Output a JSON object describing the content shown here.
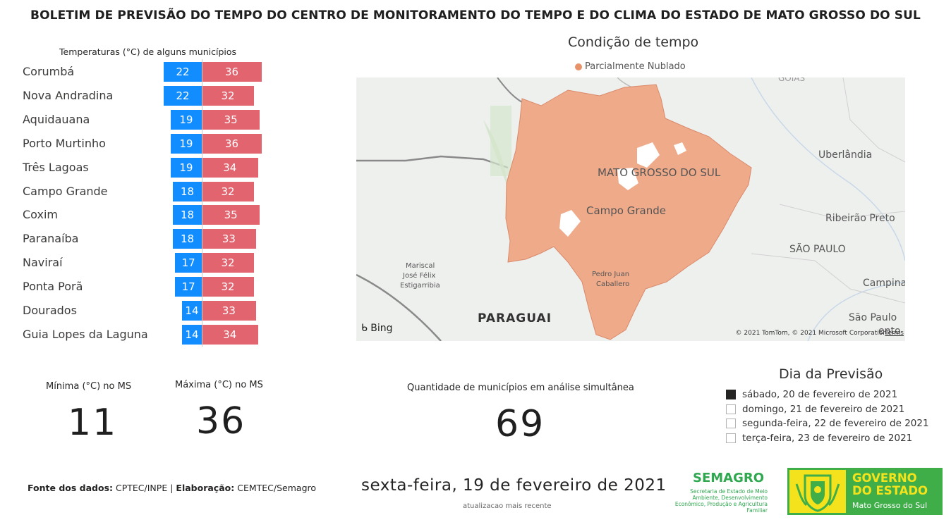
{
  "header": {
    "title": "BOLETIM DE PREVISÃO DO TEMPO DO CENTRO DE MONITORAMENTO DO TEMPO E DO CLIMA DO ESTADO DE MATO GROSSO DO SUL"
  },
  "temperature_chart": {
    "title": "Temperaturas (°C) de alguns municípios",
    "colors": {
      "min": "#118DFF",
      "max": "#E1646F"
    }
  },
  "chart_data": {
    "type": "bar",
    "title": "Temperaturas (°C) de alguns municípios",
    "categories": [
      "Corumbá",
      "Nova Andradina",
      "Aquidauana",
      "Porto Murtinho",
      "Três Lagoas",
      "Campo Grande",
      "Coxim",
      "Paranaíba",
      "Naviraí",
      "Ponta Porã",
      "Dourados",
      "Guia Lopes da Laguna"
    ],
    "series": [
      {
        "values": [
          22,
          22,
          19,
          19,
          19,
          18,
          18,
          18,
          17,
          17,
          14,
          14
        ]
      },
      {
        "values": [
          36,
          32,
          35,
          36,
          34,
          32,
          35,
          33,
          32,
          32,
          33,
          34
        ]
      }
    ],
    "orientation": "horizontal",
    "grid": false
  },
  "map": {
    "title": "Condição de tempo",
    "legend_label": "Parcialmente Nublado",
    "legend_color": "#E8926A",
    "labels": {
      "state": "MATO GROSSO DO SUL",
      "capital": "Campo Grande",
      "uberlandia": "Uberlândia",
      "ribeirao": "Ribeirão Preto",
      "sp_state": "SÃO PAULO",
      "campinas": "Campina",
      "sp_city": "São Paulo",
      "pedro_juan_1": "Pedro Juan",
      "pedro_juan_2": "Caballero",
      "mariscal_1": "Mariscal",
      "mariscal_2": "José Félix",
      "mariscal_3": "Estigarribia",
      "paraguai": "PARAGUAI",
      "goias": "GOIÁS",
      "santos": "ento"
    },
    "attribution": "Bing",
    "copyright": "© 2021 TomTom, © 2021 Microsoft Corporation",
    "terms": "Terms"
  },
  "kpis": {
    "min_label": "Mínima (°C) no MS",
    "min_value": "11",
    "max_label": "Máxima (°C) no MS",
    "max_value": "36",
    "count_label": "Quantidade de municípios em análise simultânea",
    "count_value": "69"
  },
  "slicer": {
    "title": "Dia da Previsão",
    "options": [
      {
        "label": "sábado, 20 de fevereiro de 2021",
        "checked": true
      },
      {
        "label": "domingo, 21 de fevereiro de 2021",
        "checked": false
      },
      {
        "label": "segunda-feira, 22 de fevereiro de 2021",
        "checked": false
      },
      {
        "label": "terça-feira, 23 de fevereiro de 2021",
        "checked": false
      }
    ]
  },
  "footer": {
    "source_label": "Fonte dos dados:",
    "source_value": "CPTEC/INPE",
    "sep": "|",
    "elab_label": "Elaboração:",
    "elab_value": "CEMTEC/Semagro",
    "date": "sexta-feira, 19 de fevereiro de 2021",
    "date_sub": "atualizacao mais recente"
  },
  "logos": {
    "semagro_name": "SEMAGRO",
    "semagro_sub": "Secretaria de Estado de Meio Ambiente, Desenvolvimento Econômico, Produção e Agricultura Familiar",
    "gov_line1": "GOVERNO",
    "gov_line2": "DO ESTADO",
    "gov_line3": "Mato Grosso do Sul"
  }
}
